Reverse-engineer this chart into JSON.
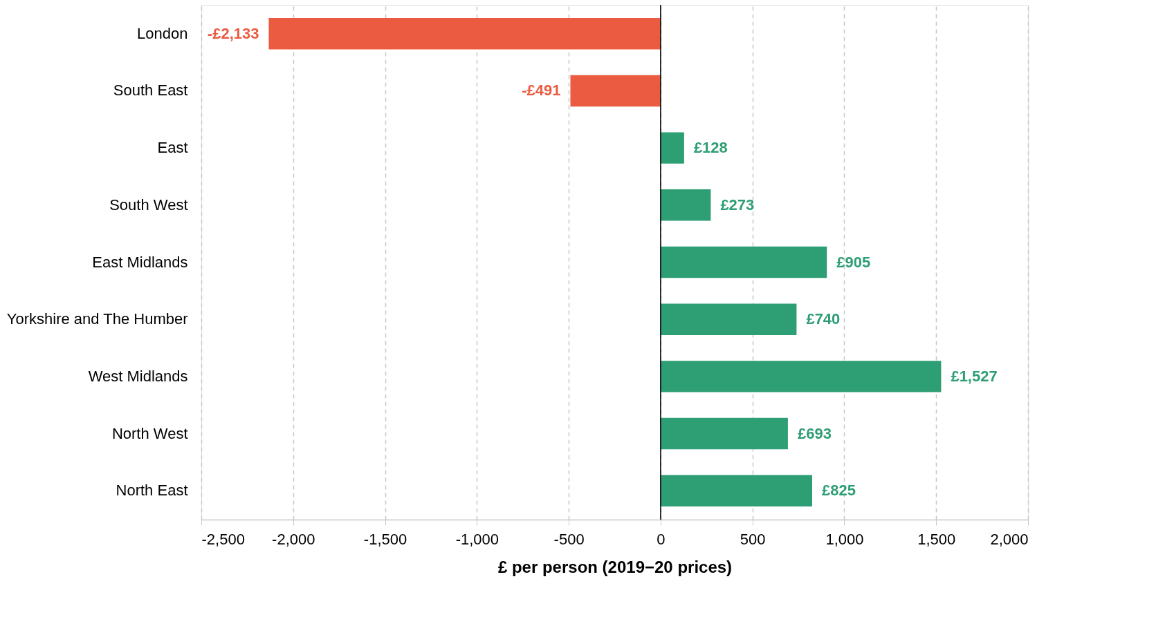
{
  "chart_data": {
    "type": "bar",
    "orientation": "horizontal",
    "xlabel": "£ per person (2019−20 prices)",
    "categories": [
      "London",
      "South East",
      "East",
      "South West",
      "East Midlands",
      "Yorkshire and The Humber",
      "West Midlands",
      "North West",
      "North East"
    ],
    "values": [
      -2133,
      -491,
      128,
      273,
      905,
      740,
      1527,
      693,
      825
    ],
    "colors": [
      "#eb5b41",
      "#eb5b41",
      "#2e9e74",
      "#2e9e74",
      "#2e9e74",
      "#2e9e74",
      "#2e9e74",
      "#2e9e74",
      "#2e9e74"
    ],
    "value_labels": [
      "-£2,133",
      "-£491",
      "£128",
      "£273",
      "£905",
      "£740",
      "£1,527",
      "£693",
      "£825"
    ],
    "xlim": [
      -2500,
      2000
    ],
    "xticks": [
      {
        "value": -2500,
        "label": "-2,500"
      },
      {
        "value": -2000,
        "label": "-2,000"
      },
      {
        "value": -1500,
        "label": "-1,500"
      },
      {
        "value": -1000,
        "label": "-1,000"
      },
      {
        "value": -500,
        "label": "-500"
      },
      {
        "value": 0,
        "label": "0"
      },
      {
        "value": 500,
        "label": "500"
      },
      {
        "value": 1000,
        "label": "1,000"
      },
      {
        "value": 1500,
        "label": "1,500"
      },
      {
        "value": 2000,
        "label": "2,000"
      }
    ],
    "grid": "x",
    "ref_lines": [
      {
        "axis": "x",
        "value": 0,
        "color": "#000000"
      }
    ]
  }
}
